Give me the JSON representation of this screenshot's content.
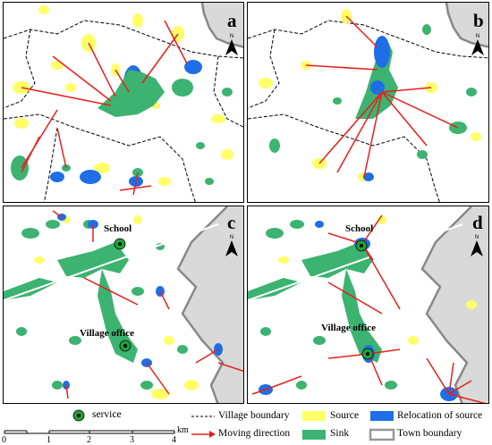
{
  "panels": [
    {
      "id": "a",
      "label": "a",
      "north": "N"
    },
    {
      "id": "b",
      "label": "b",
      "north": "N"
    },
    {
      "id": "c",
      "label": "c",
      "north": "N",
      "poi": [
        "School",
        "Village office"
      ]
    },
    {
      "id": "d",
      "label": "d",
      "north": "N",
      "poi": [
        "School",
        "Village office"
      ]
    }
  ],
  "legend": {
    "service": "service",
    "village_boundary": "Village boundary",
    "moving_direction": "Moving direction",
    "source": "Source",
    "sink": "Sink",
    "relocation": "Relocation of source",
    "town_boundary": "Town boundary"
  },
  "scale": {
    "ticks": [
      "0",
      "1",
      "2",
      "3",
      "4"
    ],
    "unit": "km"
  },
  "colors": {
    "source": "#ffff66",
    "sink": "#3cb371",
    "relocation": "#1e6fe6",
    "arrow": "#e8201a",
    "outside_town": "#d9d9d9",
    "service_fill": "#22a03a"
  }
}
